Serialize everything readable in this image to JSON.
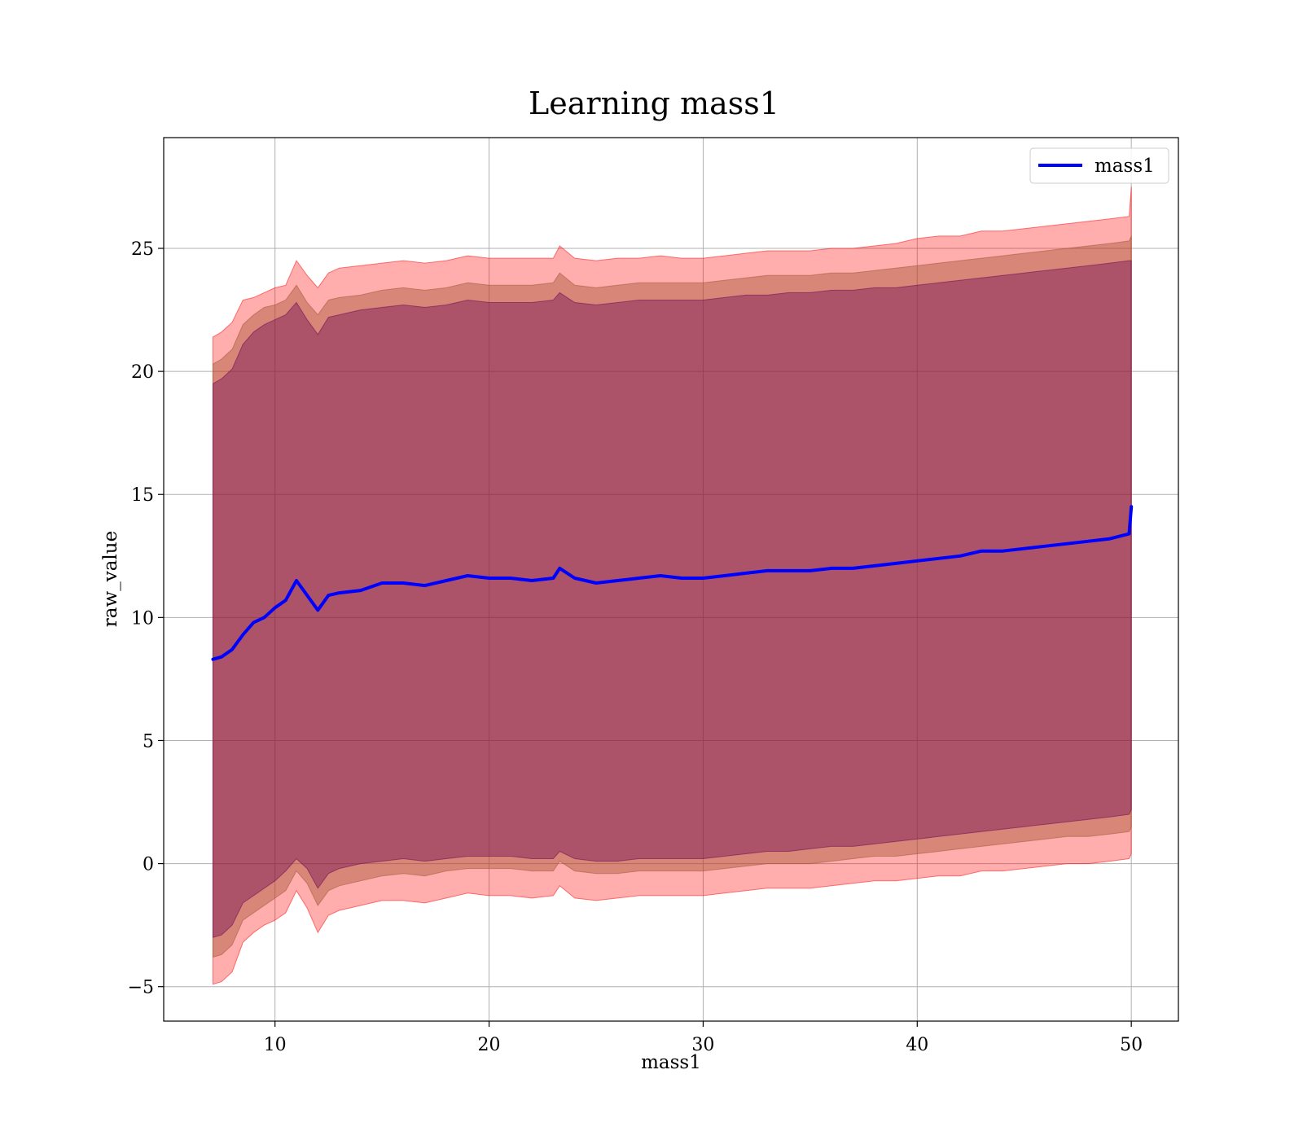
{
  "chart_data": {
    "type": "area",
    "title": "Learning mass1",
    "xlabel": "mass1",
    "ylabel": "raw_value",
    "xlim": [
      4.8,
      52.2
    ],
    "ylim": [
      -6.4,
      29.5
    ],
    "x_ticks": [
      10,
      20,
      30,
      40,
      50
    ],
    "y_ticks": [
      -5,
      0,
      5,
      10,
      15,
      20,
      25
    ],
    "x_tick_labels": [
      "10",
      "20",
      "30",
      "40",
      "50"
    ],
    "y_tick_labels": [
      "−5",
      "0",
      "5",
      "10",
      "15",
      "20",
      "25"
    ],
    "grid": true,
    "legend_position": "top-right",
    "x": [
      7.1,
      7.5,
      8,
      8.5,
      9,
      9.5,
      10,
      10.5,
      11,
      11.5,
      12,
      12.5,
      13,
      14,
      15,
      16,
      17,
      18,
      19,
      20,
      21,
      22,
      23,
      23.3,
      24,
      25,
      26,
      27,
      28,
      29,
      30,
      31,
      32,
      33,
      34,
      35,
      36,
      37,
      38,
      39,
      40,
      41,
      42,
      43,
      44,
      45,
      46,
      47,
      48,
      49,
      49.9,
      50
    ],
    "series": [
      {
        "name": "mass1",
        "color": "#0000ff",
        "values": [
          8.3,
          8.4,
          8.7,
          9.3,
          9.8,
          10.0,
          10.4,
          10.7,
          11.5,
          10.9,
          10.3,
          10.9,
          11.0,
          11.1,
          11.4,
          11.4,
          11.3,
          11.5,
          11.7,
          11.6,
          11.6,
          11.5,
          11.6,
          12.0,
          11.6,
          11.4,
          11.5,
          11.6,
          11.7,
          11.6,
          11.6,
          11.7,
          11.8,
          11.9,
          11.9,
          11.9,
          12.0,
          12.0,
          12.1,
          12.2,
          12.3,
          12.4,
          12.5,
          12.7,
          12.7,
          12.8,
          12.9,
          13.0,
          13.1,
          13.2,
          13.4,
          14.5
        ]
      }
    ],
    "bands": [
      {
        "color": "#ff0000",
        "opacity": 0.32,
        "upper": [
          21.4,
          21.6,
          22.0,
          22.9,
          23.0,
          23.2,
          23.4,
          23.5,
          24.5,
          23.9,
          23.4,
          24.0,
          24.2,
          24.3,
          24.4,
          24.5,
          24.4,
          24.5,
          24.7,
          24.6,
          24.6,
          24.6,
          24.6,
          25.1,
          24.6,
          24.5,
          24.6,
          24.6,
          24.7,
          24.6,
          24.6,
          24.7,
          24.8,
          24.9,
          24.9,
          24.9,
          25.0,
          25.0,
          25.1,
          25.2,
          25.4,
          25.5,
          25.5,
          25.7,
          25.7,
          25.8,
          25.9,
          26.0,
          26.1,
          26.2,
          26.3,
          27.5
        ],
        "lower": [
          -4.9,
          -4.8,
          -4.4,
          -3.2,
          -2.8,
          -2.5,
          -2.3,
          -2.0,
          -1.1,
          -1.8,
          -2.8,
          -2.1,
          -1.9,
          -1.7,
          -1.5,
          -1.5,
          -1.6,
          -1.4,
          -1.2,
          -1.3,
          -1.3,
          -1.4,
          -1.3,
          -0.9,
          -1.4,
          -1.5,
          -1.4,
          -1.3,
          -1.3,
          -1.3,
          -1.3,
          -1.2,
          -1.1,
          -1.0,
          -1.0,
          -1.0,
          -0.9,
          -0.8,
          -0.7,
          -0.7,
          -0.6,
          -0.5,
          -0.5,
          -0.3,
          -0.3,
          -0.2,
          -0.1,
          0.0,
          0.0,
          0.1,
          0.2,
          0.4
        ]
      },
      {
        "color": "#a0522d",
        "opacity": 0.42,
        "upper": [
          20.3,
          20.5,
          20.9,
          21.9,
          22.3,
          22.6,
          22.7,
          22.9,
          23.5,
          22.8,
          22.3,
          22.9,
          23.0,
          23.1,
          23.3,
          23.4,
          23.3,
          23.4,
          23.6,
          23.5,
          23.5,
          23.5,
          23.6,
          24.0,
          23.5,
          23.4,
          23.5,
          23.6,
          23.6,
          23.6,
          23.6,
          23.7,
          23.8,
          23.9,
          23.9,
          23.9,
          24.0,
          24.0,
          24.1,
          24.2,
          24.3,
          24.4,
          24.5,
          24.6,
          24.7,
          24.8,
          24.9,
          25.0,
          25.1,
          25.2,
          25.3,
          25.5
        ],
        "lower": [
          -3.8,
          -3.7,
          -3.3,
          -2.3,
          -2.0,
          -1.7,
          -1.4,
          -1.1,
          -0.3,
          -0.8,
          -1.7,
          -1.1,
          -0.9,
          -0.7,
          -0.5,
          -0.4,
          -0.5,
          -0.3,
          -0.2,
          -0.2,
          -0.2,
          -0.3,
          -0.3,
          0.1,
          -0.3,
          -0.4,
          -0.4,
          -0.3,
          -0.3,
          -0.3,
          -0.3,
          -0.2,
          -0.1,
          0.0,
          0.0,
          0.0,
          0.1,
          0.2,
          0.3,
          0.3,
          0.4,
          0.5,
          0.6,
          0.7,
          0.8,
          0.9,
          1.0,
          1.1,
          1.1,
          1.2,
          1.3,
          1.5
        ]
      },
      {
        "color": "#660055",
        "opacity": 0.38,
        "upper": [
          19.5,
          19.7,
          20.1,
          21.1,
          21.6,
          21.9,
          22.1,
          22.3,
          22.8,
          22.1,
          21.5,
          22.2,
          22.3,
          22.5,
          22.6,
          22.7,
          22.6,
          22.7,
          22.9,
          22.8,
          22.8,
          22.8,
          22.9,
          23.2,
          22.8,
          22.7,
          22.8,
          22.9,
          22.9,
          22.9,
          22.9,
          23.0,
          23.1,
          23.1,
          23.2,
          23.2,
          23.3,
          23.3,
          23.4,
          23.4,
          23.5,
          23.6,
          23.7,
          23.8,
          23.9,
          24.0,
          24.1,
          24.2,
          24.3,
          24.4,
          24.5,
          24.5
        ],
        "lower": [
          -3.0,
          -2.9,
          -2.5,
          -1.6,
          -1.3,
          -1.0,
          -0.7,
          -0.3,
          0.2,
          -0.2,
          -1.0,
          -0.4,
          -0.2,
          0.0,
          0.1,
          0.2,
          0.1,
          0.2,
          0.3,
          0.3,
          0.3,
          0.2,
          0.2,
          0.5,
          0.2,
          0.1,
          0.1,
          0.2,
          0.2,
          0.2,
          0.2,
          0.3,
          0.4,
          0.5,
          0.5,
          0.6,
          0.7,
          0.7,
          0.8,
          0.9,
          1.0,
          1.1,
          1.2,
          1.3,
          1.4,
          1.5,
          1.6,
          1.7,
          1.8,
          1.9,
          2.0,
          2.2
        ]
      }
    ]
  }
}
